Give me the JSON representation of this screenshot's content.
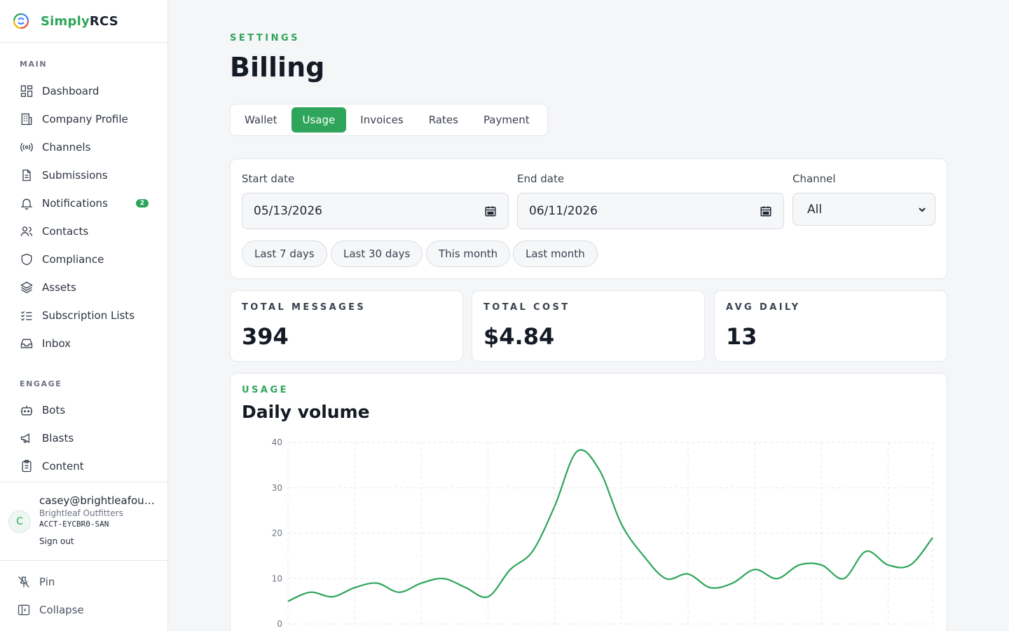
{
  "brand": {
    "name_part1": "Simply",
    "name_part2": "RCS"
  },
  "sidebar": {
    "sections": [
      {
        "title": "MAIN",
        "items": [
          {
            "label": "Dashboard",
            "icon": "dashboard-icon"
          },
          {
            "label": "Company Profile",
            "icon": "building-icon"
          },
          {
            "label": "Channels",
            "icon": "broadcast-icon"
          },
          {
            "label": "Submissions",
            "icon": "document-icon"
          },
          {
            "label": "Notifications",
            "icon": "bell-icon",
            "badge": "2"
          },
          {
            "label": "Contacts",
            "icon": "users-icon"
          },
          {
            "label": "Compliance",
            "icon": "shield-icon"
          },
          {
            "label": "Assets",
            "icon": "layers-icon"
          },
          {
            "label": "Subscription Lists",
            "icon": "list-check-icon"
          },
          {
            "label": "Inbox",
            "icon": "inbox-icon"
          }
        ]
      },
      {
        "title": "ENGAGE",
        "items": [
          {
            "label": "Bots",
            "icon": "bot-icon"
          },
          {
            "label": "Blasts",
            "icon": "megaphone-icon"
          },
          {
            "label": "Content",
            "icon": "clipboard-icon"
          }
        ]
      }
    ]
  },
  "user": {
    "initial": "C",
    "email": "casey@brightleafoutfitters.com",
    "company": "Brightleaf Outfitters",
    "account_id": "ACCT-EYCBR0-SAN",
    "sign_out": "Sign out"
  },
  "bottom_actions": {
    "pin": "Pin",
    "collapse": "Collapse"
  },
  "header": {
    "eyebrow": "SETTINGS",
    "title": "Billing"
  },
  "tabs": [
    {
      "label": "Wallet",
      "active": false
    },
    {
      "label": "Usage",
      "active": true
    },
    {
      "label": "Invoices",
      "active": false
    },
    {
      "label": "Rates",
      "active": false
    },
    {
      "label": "Payment",
      "active": false
    }
  ],
  "filters": {
    "start_label": "Start date",
    "start_value": "05/13/2026",
    "end_label": "End date",
    "end_value": "06/11/2026",
    "channel_label": "Channel",
    "channel_value": "All",
    "presets": [
      "Last 7 days",
      "Last 30 days",
      "This month",
      "Last month"
    ]
  },
  "stats": [
    {
      "label": "TOTAL MESSAGES",
      "value": "394"
    },
    {
      "label": "TOTAL COST",
      "value": "$4.84"
    },
    {
      "label": "AVG DAILY",
      "value": "13"
    }
  ],
  "chart_section": {
    "eyebrow": "USAGE",
    "title": "Daily volume"
  },
  "colors": {
    "accent": "#2ea55a"
  },
  "chart_data": {
    "type": "line",
    "title": "Daily volume",
    "xlabel": "",
    "ylabel": "",
    "ylim": [
      0,
      40
    ],
    "yticks": [
      0,
      10,
      20,
      30,
      40
    ],
    "grid": true,
    "series": [
      {
        "values": [
          5,
          7,
          6,
          8,
          9,
          7,
          9,
          10,
          8,
          6,
          12,
          16,
          26,
          38,
          34,
          22,
          15,
          10,
          11,
          8,
          9,
          12,
          10,
          13,
          13,
          10,
          16,
          13,
          13,
          19
        ]
      }
    ]
  }
}
